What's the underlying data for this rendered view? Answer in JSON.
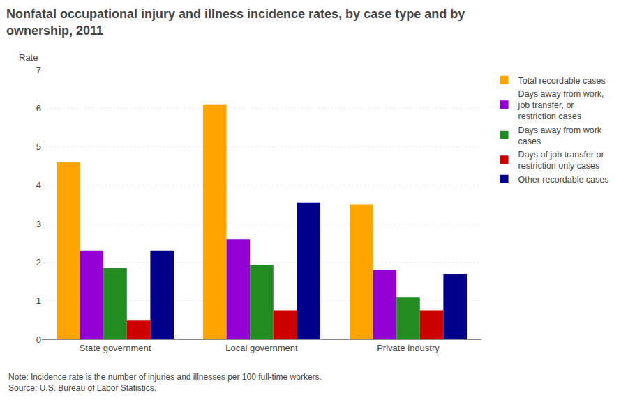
{
  "chart_data": {
    "type": "bar",
    "title": "Nonfatal occupational injury and illness incidence rates, by case type and by\nownership, 2011",
    "ylabel": "Rate",
    "categories": [
      "State government",
      "Local government",
      "Private industry"
    ],
    "series": [
      {
        "name": "Total recordable cases",
        "color": "#FFA500",
        "values": [
          4.6,
          6.1,
          3.5
        ]
      },
      {
        "name": "Days away from work,\njob transfer, or\nrestriction cases",
        "color": "#9400D3",
        "values": [
          2.3,
          2.6,
          1.8
        ]
      },
      {
        "name": "Days away from work\ncases",
        "color": "#228B22",
        "values": [
          1.85,
          1.93,
          1.1
        ]
      },
      {
        "name": "Days of job transfer or\nrestriction only cases",
        "color": "#CC0000",
        "values": [
          0.5,
          0.75,
          0.75
        ]
      },
      {
        "name": "Other recordable cases",
        "color": "#00008B",
        "values": [
          2.3,
          3.55,
          1.7
        ]
      }
    ],
    "ylim": [
      0,
      7
    ],
    "yticks": [
      0,
      1,
      2,
      3,
      4,
      5,
      6,
      7
    ],
    "grid": true,
    "legend": "right",
    "annotations": [
      "Note: Incidence rate is the number of injuries and illnesses per 100 full-time workers.\nSource: U.S. Bureau of Labor Statistics."
    ]
  }
}
